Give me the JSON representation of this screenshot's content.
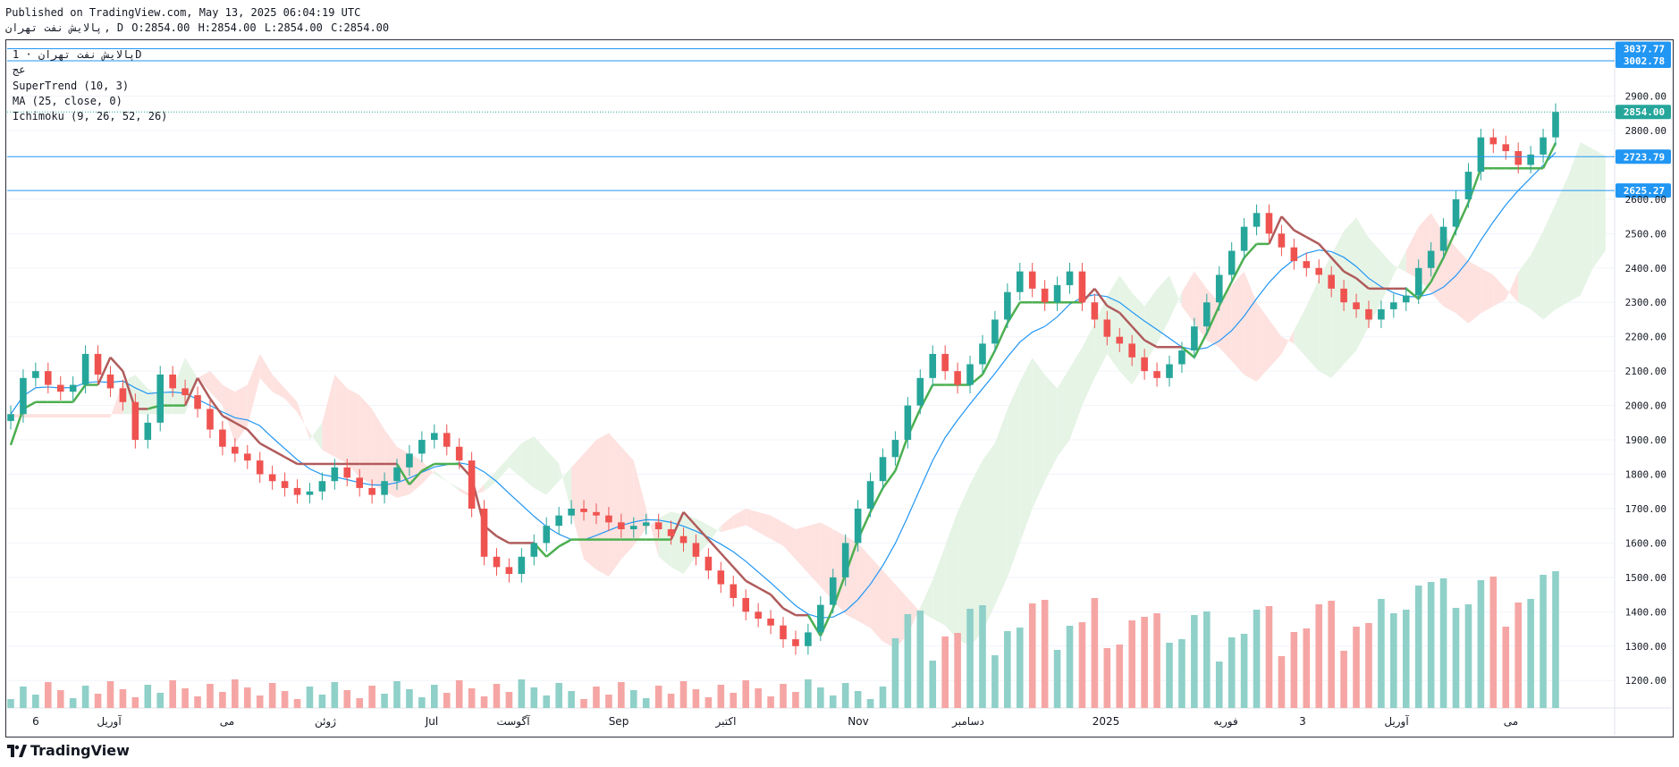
{
  "header": {
    "published": "Published on TradingView.com, May 13, 2025 06:04:19 UTC",
    "symbol": "پالایش نفت تهران",
    "interval": "D",
    "ohlc": {
      "o": "O:2854.00",
      "h": "H:2854.00",
      "l": "L:2854.00",
      "c": "C:2854.00"
    }
  },
  "legend": {
    "title": "پالایش نفت تهران · 1D",
    "subtitle": "عج",
    "indicators": [
      "SuperTrend (10, 3)",
      "MA (25, close, 0)",
      "Ichimoku (9, 26, 52, 26)"
    ]
  },
  "watermark": "TradingView",
  "colors": {
    "up": "#26a69a",
    "down": "#ef5350",
    "st_up": "#4caf50",
    "st_down": "#b05b5b",
    "ma": "#2196f3",
    "cloud_up": "#e6f4e6",
    "cloud_down": "#fde2e0",
    "hline": "#2196f3",
    "last_price": "#26a69a"
  },
  "chart_data": {
    "type": "candlestick",
    "y_range": [
      1120,
      3060
    ],
    "y_ticks": [
      "2900.00",
      "2800.00",
      "2600.00",
      "2500.00",
      "2400.00",
      "2300.00",
      "2200.00",
      "2100.00",
      "2000.00",
      "1900.00",
      "1800.00",
      "1700.00",
      "1600.00",
      "1500.00",
      "1400.00",
      "1300.00",
      "1200.00"
    ],
    "x_ticks": [
      "6",
      "آوریل",
      "می",
      "ژوئن",
      "Jul",
      "آگوست",
      "Sep",
      "اکتبر",
      "Nov",
      "دسامبر",
      "2025",
      "فوریه",
      "3",
      "آوریل",
      "می"
    ],
    "horizontal_levels": [
      "3037.77",
      "3002.78",
      "2723.79",
      "2625.27"
    ],
    "last_price": "2854.00",
    "closes": [
      1975,
      2080,
      2100,
      2060,
      2040,
      2060,
      2150,
      2090,
      2050,
      2010,
      1900,
      1950,
      2090,
      2050,
      2030,
      1990,
      1930,
      1880,
      1860,
      1840,
      1800,
      1780,
      1760,
      1740,
      1750,
      1780,
      1820,
      1790,
      1760,
      1740,
      1780,
      1820,
      1860,
      1900,
      1920,
      1880,
      1840,
      1700,
      1560,
      1530,
      1510,
      1560,
      1600,
      1650,
      1680,
      1700,
      1690,
      1680,
      1660,
      1640,
      1650,
      1660,
      1640,
      1620,
      1600,
      1560,
      1520,
      1480,
      1440,
      1400,
      1380,
      1360,
      1320,
      1300,
      1340,
      1420,
      1500,
      1600,
      1700,
      1780,
      1850,
      1900,
      2000,
      2080,
      2150,
      2100,
      2060,
      2120,
      2180,
      2250,
      2330,
      2390,
      2340,
      2300,
      2350,
      2390,
      2300,
      2250,
      2200,
      2180,
      2140,
      2100,
      2080,
      2120,
      2160,
      2230,
      2300,
      2380,
      2450,
      2520,
      2560,
      2500,
      2460,
      2420,
      2400,
      2380,
      2340,
      2300,
      2280,
      2250,
      2280,
      2300,
      2320,
      2400,
      2450,
      2520,
      2600,
      2680,
      2780,
      2760,
      2740,
      2700,
      2730,
      2780,
      2854
    ],
    "volume_peak_labels": "volume bars shown at bottom"
  }
}
